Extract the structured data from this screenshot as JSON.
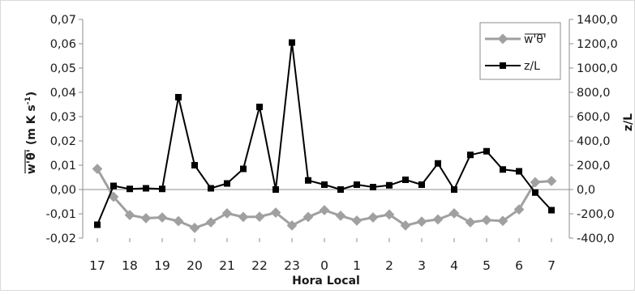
{
  "chart_data": {
    "type": "line",
    "xlabel": "Hora Local",
    "x_ticks": [
      "17",
      "18",
      "19",
      "20",
      "21",
      "22",
      "23",
      "0",
      "1",
      "2",
      "3",
      "4",
      "5",
      "6",
      "7"
    ],
    "ylabel_left_main": "w'θ'",
    "ylabel_left_units_before": "(m K s",
    "ylabel_left_units_sup": "-1",
    "ylabel_left_units_after": ")",
    "ylabel_right": "z/L",
    "y_left": {
      "ylim": [
        -0.02,
        0.07
      ],
      "ticks": [
        "-0,02",
        "-0,01",
        "0,00",
        "0,01",
        "0,02",
        "0,03",
        "0,04",
        "0,05",
        "0,06",
        "0,07"
      ]
    },
    "y_right": {
      "ylim": [
        -400,
        1400
      ],
      "ticks": [
        "-400,0",
        "-200,0",
        "0,0",
        "200,0",
        "400,0",
        "600,0",
        "800,0",
        "1000,0",
        "1200,0",
        "1400,0"
      ]
    },
    "grid": false,
    "legend_position": "top-right",
    "series": [
      {
        "name": "w'θ'",
        "axis": "left",
        "color": "#a0a0a0",
        "marker": "diamond",
        "x": [
          17,
          17.5,
          18,
          18.5,
          19,
          19.5,
          20,
          20.5,
          21,
          21.5,
          22,
          22.5,
          23,
          23.5,
          0,
          0.5,
          1,
          1.5,
          2,
          2.5,
          3,
          3.5,
          4,
          4.5,
          5,
          5.5,
          6,
          6.5,
          7
        ],
        "values": [
          0.0085,
          -0.003,
          -0.0105,
          -0.0118,
          -0.0115,
          -0.013,
          -0.0158,
          -0.0135,
          -0.0098,
          -0.0113,
          -0.0112,
          -0.0095,
          -0.0148,
          -0.0113,
          -0.0085,
          -0.0108,
          -0.0128,
          -0.0115,
          -0.0103,
          -0.0148,
          -0.0132,
          -0.0123,
          -0.0098,
          -0.0135,
          -0.0126,
          -0.0129,
          -0.0082,
          0.003,
          0.0035
        ]
      },
      {
        "name": "z/L",
        "axis": "right",
        "color": "#000000",
        "marker": "square",
        "x": [
          17,
          17.5,
          18,
          18.5,
          19,
          19.5,
          20,
          20.5,
          21,
          21.5,
          22,
          22.5,
          23,
          23.5,
          0,
          0.5,
          1,
          1.5,
          2,
          2.5,
          3,
          3.5,
          4,
          4.5,
          5,
          5.5,
          6,
          6.5,
          7
        ],
        "values": [
          -290,
          30,
          5,
          10,
          5,
          760,
          200,
          10,
          50,
          170,
          680,
          0,
          1210,
          75,
          40,
          0,
          40,
          20,
          35,
          80,
          40,
          215,
          0,
          285,
          315,
          165,
          150,
          -25,
          -170
        ]
      }
    ]
  }
}
